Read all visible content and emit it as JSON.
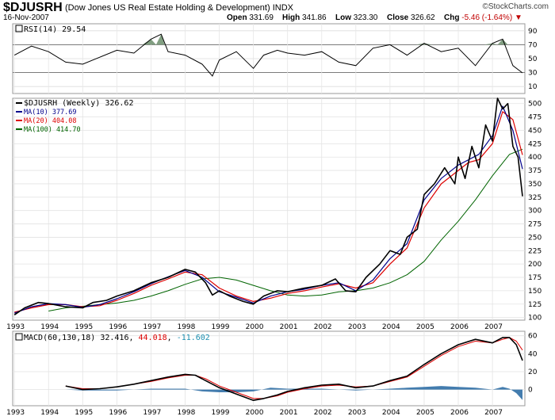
{
  "header": {
    "symbol": "$DJUSRH",
    "name": "(Dow Jones US Real Estate Holding & Development)",
    "exchange": "INDX",
    "date": "16-Nov-2007",
    "open_label": "Open",
    "open": "331.69",
    "high_label": "High",
    "high": "341.86",
    "low_label": "Low",
    "low": "323.30",
    "close_label": "Close",
    "close": "326.62",
    "chg_label": "Chg",
    "chg": "-5.46 (-1.64%)",
    "logo": "©StockCharts.com"
  },
  "colors": {
    "price": "#000000",
    "ma10": "#00008b",
    "ma20": "#dd0000",
    "ma100": "#006400",
    "rsi_fill": "#6b8e6b",
    "macd_hist": "#2f6ea5",
    "macd_signal": "#dd0000",
    "macd_hist_label": "#1b8fb0"
  },
  "chart_data": [
    {
      "type": "line",
      "panel": "rsi",
      "title": "RSI(14) 29.54",
      "y_ticks": [
        10,
        30,
        50,
        70,
        90
      ],
      "ylim": [
        0,
        100
      ],
      "reference_lines": [
        30,
        70
      ],
      "x": [
        1993.0,
        1993.5,
        1994.0,
        1994.5,
        1995.0,
        1995.5,
        1996.0,
        1996.5,
        1997.0,
        1997.3,
        1997.5,
        1998.0,
        1998.5,
        1998.8,
        1999.0,
        1999.5,
        2000.0,
        2000.3,
        2000.7,
        2001.0,
        2001.5,
        2002.0,
        2002.5,
        2003.0,
        2003.5,
        2004.0,
        2004.5,
        2005.0,
        2005.5,
        2006.0,
        2006.5,
        2007.0,
        2007.3,
        2007.6,
        2007.88
      ],
      "values": [
        55,
        68,
        60,
        45,
        42,
        52,
        62,
        58,
        78,
        85,
        60,
        55,
        42,
        25,
        48,
        60,
        36,
        55,
        62,
        58,
        55,
        60,
        45,
        40,
        65,
        70,
        55,
        72,
        60,
        65,
        40,
        72,
        78,
        40,
        29.54
      ]
    },
    {
      "type": "line",
      "panel": "price",
      "legend": [
        {
          "name": "$DJUSRH (Weekly) 326.62",
          "color_key": "price"
        },
        {
          "name": "MA(10) 377.69",
          "color_key": "ma10"
        },
        {
          "name": "MA(20) 404.08",
          "color_key": "ma20"
        },
        {
          "name": "MA(100) 414.70",
          "color_key": "ma100"
        }
      ],
      "y_ticks": [
        100,
        125,
        150,
        175,
        200,
        225,
        250,
        275,
        300,
        325,
        350,
        375,
        400,
        425,
        450,
        475,
        500
      ],
      "ylim": [
        95,
        510
      ],
      "x_ticks": [
        "1993",
        "1994",
        "1995",
        "1996",
        "1997",
        "1998",
        "1999",
        "2000",
        "2001",
        "2002",
        "2003",
        "2004",
        "2005",
        "2006",
        "2007"
      ],
      "xlim": [
        1992.95,
        2007.95
      ],
      "series": [
        {
          "name": "$DJUSRH (Weekly)",
          "color_key": "price",
          "width": 1.6,
          "x": [
            1993.0,
            1993.3,
            1993.7,
            1994.0,
            1994.5,
            1995.0,
            1995.3,
            1995.7,
            1996.0,
            1996.5,
            1997.0,
            1997.5,
            1998.0,
            1998.3,
            1998.6,
            1998.8,
            1999.0,
            1999.3,
            1999.7,
            2000.0,
            2000.3,
            2000.7,
            2001.0,
            2001.5,
            2002.0,
            2002.4,
            2002.7,
            2003.0,
            2003.3,
            2003.7,
            2004.0,
            2004.3,
            2004.5,
            2004.8,
            2005.0,
            2005.3,
            2005.6,
            2005.9,
            2006.0,
            2006.2,
            2006.4,
            2006.6,
            2006.8,
            2007.0,
            2007.15,
            2007.3,
            2007.45,
            2007.6,
            2007.75,
            2007.88
          ],
          "values": [
            105,
            118,
            128,
            126,
            120,
            118,
            128,
            132,
            140,
            150,
            165,
            175,
            190,
            185,
            165,
            142,
            150,
            140,
            130,
            125,
            140,
            150,
            148,
            155,
            160,
            172,
            150,
            148,
            175,
            200,
            225,
            218,
            250,
            265,
            330,
            350,
            380,
            350,
            400,
            360,
            420,
            380,
            460,
            430,
            510,
            490,
            500,
            420,
            400,
            326.62
          ]
        },
        {
          "name": "MA(10)",
          "color_key": "ma10",
          "width": 1.2,
          "x": [
            1993.0,
            1993.5,
            1994.0,
            1994.5,
            1995.0,
            1995.5,
            1996.0,
            1996.5,
            1997.0,
            1997.5,
            1998.0,
            1998.5,
            1999.0,
            1999.5,
            2000.0,
            2000.5,
            2001.0,
            2001.5,
            2002.0,
            2002.5,
            2003.0,
            2003.5,
            2004.0,
            2004.5,
            2005.0,
            2005.5,
            2006.0,
            2006.3,
            2006.6,
            2007.0,
            2007.3,
            2007.6,
            2007.88
          ],
          "values": [
            108,
            120,
            126,
            124,
            119,
            124,
            135,
            148,
            163,
            176,
            188,
            175,
            148,
            138,
            127,
            140,
            148,
            153,
            160,
            165,
            150,
            170,
            210,
            238,
            320,
            360,
            385,
            395,
            405,
            440,
            495,
            450,
            377.69
          ]
        },
        {
          "name": "MA(20)",
          "color_key": "ma20",
          "width": 1.2,
          "x": [
            1993.0,
            1993.5,
            1994.0,
            1994.5,
            1995.0,
            1995.5,
            1996.0,
            1996.5,
            1997.0,
            1997.5,
            1998.0,
            1998.5,
            1999.0,
            1999.5,
            2000.0,
            2000.5,
            2001.0,
            2001.5,
            2002.0,
            2002.5,
            2003.0,
            2003.5,
            2004.0,
            2004.5,
            2005.0,
            2005.5,
            2006.0,
            2006.3,
            2006.6,
            2007.0,
            2007.3,
            2007.6,
            2007.88
          ],
          "values": [
            110,
            118,
            124,
            124,
            120,
            122,
            132,
            145,
            160,
            172,
            185,
            180,
            155,
            140,
            130,
            136,
            145,
            150,
            157,
            163,
            155,
            165,
            200,
            230,
            305,
            350,
            375,
            390,
            395,
            425,
            485,
            470,
            404.08
          ]
        },
        {
          "name": "MA(100)",
          "color_key": "ma100",
          "width": 1.0,
          "x": [
            1994.0,
            1994.5,
            1995.0,
            1995.5,
            1996.0,
            1996.5,
            1997.0,
            1997.5,
            1998.0,
            1998.5,
            1999.0,
            1999.5,
            2000.0,
            2000.5,
            2001.0,
            2001.5,
            2002.0,
            2002.5,
            2003.0,
            2003.5,
            2004.0,
            2004.5,
            2005.0,
            2005.5,
            2006.0,
            2006.5,
            2007.0,
            2007.5,
            2007.88
          ],
          "values": [
            112,
            118,
            121,
            124,
            127,
            132,
            140,
            150,
            162,
            172,
            175,
            170,
            160,
            150,
            142,
            140,
            142,
            148,
            150,
            155,
            165,
            180,
            205,
            245,
            280,
            320,
            365,
            405,
            414.7
          ]
        }
      ]
    },
    {
      "type": "line",
      "panel": "macd",
      "title": "MACD(60,130,18)",
      "macd_value": "32.416",
      "signal_value": "44.018",
      "hist_value": "-11.602",
      "y_ticks": [
        0,
        20,
        40,
        60
      ],
      "ylim": [
        -18,
        65
      ],
      "x_ticks": [
        "1993",
        "1994",
        "1995",
        "1996",
        "1997",
        "1998",
        "1999",
        "2000",
        "2001",
        "2002",
        "2003",
        "2004",
        "2005",
        "2006",
        "2007"
      ],
      "xlim": [
        1992.95,
        2007.95
      ],
      "series": [
        {
          "name": "MACD",
          "color_key": "price",
          "width": 1.6,
          "x": [
            1994.5,
            1995.0,
            1995.5,
            1996.0,
            1996.5,
            1997.0,
            1997.5,
            1998.0,
            1998.3,
            1998.6,
            1999.0,
            1999.5,
            2000.0,
            2000.3,
            2000.7,
            2001.0,
            2001.5,
            2002.0,
            2002.5,
            2003.0,
            2003.5,
            2004.0,
            2004.5,
            2005.0,
            2005.5,
            2006.0,
            2006.5,
            2007.0,
            2007.3,
            2007.5,
            2007.7,
            2007.88
          ],
          "values": [
            4,
            0,
            1,
            3,
            6,
            10,
            14,
            17,
            16,
            10,
            2,
            -5,
            -12,
            -10,
            -6,
            -2,
            2,
            5,
            6,
            2,
            4,
            10,
            15,
            28,
            40,
            50,
            56,
            52,
            58,
            58,
            50,
            32.416
          ]
        },
        {
          "name": "Signal",
          "color_key": "macd_signal",
          "width": 1.0,
          "x": [
            1994.5,
            1995.0,
            1995.5,
            1996.0,
            1996.5,
            1997.0,
            1997.5,
            1998.0,
            1998.3,
            1998.6,
            1999.0,
            1999.5,
            2000.0,
            2000.3,
            2000.7,
            2001.0,
            2001.5,
            2002.0,
            2002.5,
            2003.0,
            2003.5,
            2004.0,
            2004.5,
            2005.0,
            2005.5,
            2006.0,
            2006.5,
            2007.0,
            2007.3,
            2007.5,
            2007.7,
            2007.88
          ],
          "values": [
            4,
            1,
            1,
            3,
            6,
            9,
            13,
            16,
            16,
            12,
            4,
            -3,
            -10,
            -10,
            -7,
            -3,
            1,
            4,
            5,
            3,
            4,
            9,
            14,
            26,
            38,
            48,
            54,
            52,
            56,
            58,
            54,
            44.018
          ]
        },
        {
          "name": "Histogram",
          "color_key": "macd_hist",
          "type": "area",
          "x": [
            1994.5,
            1995.0,
            1996.0,
            1997.0,
            1998.0,
            1998.5,
            1999.0,
            1999.5,
            2000.0,
            2000.5,
            2001.0,
            2002.0,
            2003.0,
            2004.0,
            2004.5,
            2005.0,
            2005.5,
            2006.0,
            2006.5,
            2007.0,
            2007.3,
            2007.5,
            2007.7,
            2007.88
          ],
          "values": [
            0,
            -1,
            -1,
            1,
            1,
            -2,
            -3,
            -3,
            -2,
            2,
            1,
            1,
            -1,
            1,
            2,
            3,
            4,
            3,
            2,
            0,
            3,
            1,
            -4,
            -11.602
          ]
        }
      ]
    }
  ]
}
